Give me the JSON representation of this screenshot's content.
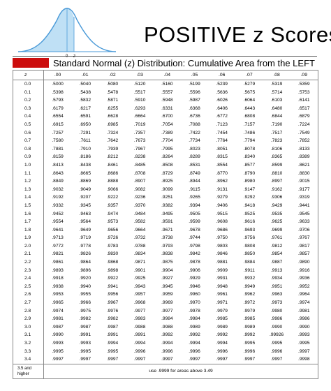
{
  "title": "POSITIVE z  Scores",
  "subtitle": "Standard Normal (z) Distribution:  Cumulative Area from the LEFT",
  "curve_labels": {
    "zero": "0",
    "z": "z"
  },
  "colors": {
    "accent_red": "#cc0d0d",
    "curve_stroke": "#4a9ad8",
    "curve_fill": "#bfe0f5"
  },
  "table": {
    "header_z": "z",
    "columns": [
      ".00",
      ".01",
      ".02",
      ".03",
      ".04",
      ".05",
      ".06",
      ".07",
      ".08",
      ".09"
    ],
    "rows": [
      {
        "z": "0.0",
        "values": [
          ".5000",
          ".5040",
          ".5080",
          ".5120",
          ".5160",
          ".5199",
          ".5239",
          ".5279",
          ".5319",
          ".5359"
        ]
      },
      {
        "z": "0.1",
        "values": [
          ".5398",
          ".5438",
          ".5478",
          ".5517",
          ".5557",
          ".5596",
          ".5636",
          ".5675",
          ".5714",
          ".5753"
        ]
      },
      {
        "z": "0.2",
        "values": [
          ".5793",
          ".5832",
          ".5871",
          ".5910",
          ".5948",
          ".5987",
          ".6026",
          ".6064",
          ".6103",
          ".6141"
        ]
      },
      {
        "z": "0.3",
        "values": [
          ".6179",
          ".6217",
          ".6255",
          ".6293",
          ".6331",
          ".6368",
          ".6406",
          ".6443",
          ".6480",
          ".6517"
        ]
      },
      {
        "z": "0.4",
        "values": [
          ".6554",
          ".6591",
          ".6628",
          ".6664",
          ".6700",
          ".6736",
          ".6772",
          ".6808",
          ".6844",
          ".6879"
        ]
      },
      {
        "z": "0.5",
        "values": [
          ".6915",
          ".6950",
          ".6985",
          ".7019",
          ".7054",
          ".7088",
          ".7123",
          ".7157",
          ".7190",
          ".7224"
        ]
      },
      {
        "z": "0.6",
        "values": [
          ".7257",
          ".7291",
          ".7324",
          ".7357",
          ".7389",
          ".7422",
          ".7454",
          ".7486",
          ".7517",
          ".7549"
        ]
      },
      {
        "z": "0.7",
        "values": [
          ".7580",
          ".7611",
          ".7642",
          ".7673",
          ".7704",
          ".7734",
          ".7764",
          ".7794",
          ".7823",
          ".7852"
        ]
      },
      {
        "z": "0.8",
        "values": [
          ".7881",
          ".7910",
          ".7939",
          ".7967",
          ".7995",
          ".8023",
          ".8051",
          ".8078",
          ".8106",
          ".8133"
        ]
      },
      {
        "z": "0.9",
        "values": [
          ".8159",
          ".8186",
          ".8212",
          ".8238",
          ".8264",
          ".8289",
          ".8315",
          ".8340",
          ".8365",
          ".8389"
        ]
      },
      {
        "z": "1.0",
        "values": [
          ".8413",
          ".8438",
          ".8461",
          ".8485",
          ".8508",
          ".8531",
          ".8554",
          ".8577",
          ".8599",
          ".8621"
        ]
      },
      {
        "z": "1.1",
        "values": [
          ".8643",
          ".8665",
          ".8686",
          ".8708",
          ".8729",
          ".8749",
          ".8770",
          ".8790",
          ".8810",
          ".8830"
        ]
      },
      {
        "z": "1.2",
        "values": [
          ".8849",
          ".8869",
          ".8888",
          ".8907",
          ".8925",
          ".8944",
          ".8962",
          ".8980",
          ".8997",
          ".9015"
        ]
      },
      {
        "z": "1.3",
        "values": [
          ".9032",
          ".9049",
          ".9066",
          ".9082",
          ".9099",
          ".9115",
          ".9131",
          ".9147",
          ".9162",
          ".9177"
        ]
      },
      {
        "z": "1.4",
        "values": [
          ".9192",
          ".9207",
          ".9222",
          ".9236",
          ".9251",
          ".9265",
          ".9279",
          ".9292",
          ".9306",
          ".9319"
        ]
      },
      {
        "z": "1.5",
        "values": [
          ".9332",
          ".9345",
          ".9357",
          ".9370",
          ".9382",
          ".9394",
          ".9406",
          ".9418",
          ".9429",
          ".9441"
        ]
      },
      {
        "z": "1.6",
        "values": [
          ".9452",
          ".9463",
          ".9474",
          ".9484",
          ".9495",
          ".9505",
          ".9515",
          ".9525",
          ".9535",
          ".9545"
        ]
      },
      {
        "z": "1.7",
        "values": [
          ".9554",
          ".9564",
          ".9573",
          ".9582",
          ".9591",
          ".9599",
          ".9608",
          ".9616",
          ".9625",
          ".9633"
        ]
      },
      {
        "z": "1.8",
        "values": [
          ".9641",
          ".9649",
          ".9656",
          ".9664",
          ".9671",
          ".9678",
          ".9686",
          ".9693",
          ".9699",
          ".9706"
        ]
      },
      {
        "z": "1.9",
        "values": [
          ".9713",
          ".9719",
          ".9726",
          ".9732",
          ".9738",
          ".9744",
          ".9750",
          ".9756",
          ".9761",
          ".9767"
        ]
      },
      {
        "z": "2.0",
        "values": [
          ".9772",
          ".9778",
          ".9783",
          ".9788",
          ".9793",
          ".9798",
          ".9803",
          ".9808",
          ".9812",
          ".9817"
        ]
      },
      {
        "z": "2.1",
        "values": [
          ".9821",
          ".9826",
          ".9830",
          ".9834",
          ".9838",
          ".9842",
          ".9846",
          ".9850",
          ".9854",
          ".9857"
        ]
      },
      {
        "z": "2.2",
        "values": [
          ".9861",
          ".9864",
          ".9868",
          ".9871",
          ".9875",
          ".9878",
          ".9881",
          ".9884",
          ".9887",
          ".9890"
        ]
      },
      {
        "z": "2.3",
        "values": [
          ".9893",
          ".9896",
          ".9898",
          ".9901",
          ".9904",
          ".9906",
          ".9909",
          ".9911",
          ".9913",
          ".9916"
        ]
      },
      {
        "z": "2.4",
        "values": [
          ".9918",
          ".9920",
          ".9922",
          ".9925",
          ".9927",
          ".9929",
          ".9931",
          ".9932",
          ".9934",
          ".9936"
        ]
      },
      {
        "z": "2.5",
        "values": [
          ".9938",
          ".9940",
          ".9941",
          ".9943",
          ".9945",
          ".9946",
          ".9948",
          ".9949",
          ".9951",
          ".9952"
        ]
      },
      {
        "z": "2.6",
        "values": [
          ".9953",
          ".9955",
          ".9956",
          ".9957",
          ".9959",
          ".9960",
          ".9961",
          ".9962",
          ".9963",
          ".9964"
        ]
      },
      {
        "z": "2.7",
        "values": [
          ".9965",
          ".9966",
          ".9967",
          ".9968",
          ".9969",
          ".9970",
          ".9971",
          ".9972",
          ".9973",
          ".9974"
        ]
      },
      {
        "z": "2.8",
        "values": [
          ".9974",
          ".9975",
          ".9976",
          ".9977",
          ".9977",
          ".9978",
          ".9979",
          ".9979",
          ".9980",
          ".9981"
        ]
      },
      {
        "z": "2.9",
        "values": [
          ".9981",
          ".9982",
          ".9982",
          ".9983",
          ".9984",
          ".9984",
          ".9985",
          ".9985",
          ".9986",
          ".9986"
        ]
      },
      {
        "z": "3.0",
        "values": [
          ".9987",
          ".9987",
          ".9987",
          ".9988",
          ".9988",
          ".9989",
          ".9989",
          ".9989",
          ".9990",
          ".9990"
        ]
      },
      {
        "z": "3.1",
        "values": [
          ".9990",
          ".9991",
          ".9991",
          ".9991",
          ".9992",
          ".9992",
          ".9992",
          ".9992",
          ".99926",
          ".9993"
        ]
      },
      {
        "z": "3.2",
        "values": [
          ".9993",
          ".9993",
          ".9994",
          ".9994",
          ".9994",
          ".9994",
          ".9994",
          ".9995",
          ".9995",
          ".9995"
        ]
      },
      {
        "z": "3.3",
        "values": [
          ".9995",
          ".9995",
          ".9995",
          ".9996",
          ".9996",
          ".9996",
          ".9996",
          ".9996",
          ".9996",
          ".9997"
        ]
      },
      {
        "z": "3.4",
        "values": [
          ".9997",
          ".9997",
          ".9997",
          ".9997",
          ".9997",
          ".9997",
          ".9997",
          ".9997",
          ".9997",
          ".9998"
        ]
      }
    ],
    "footer_z": "3.5 and higher",
    "footer_note": "use .9999 for areas above 3.49"
  }
}
